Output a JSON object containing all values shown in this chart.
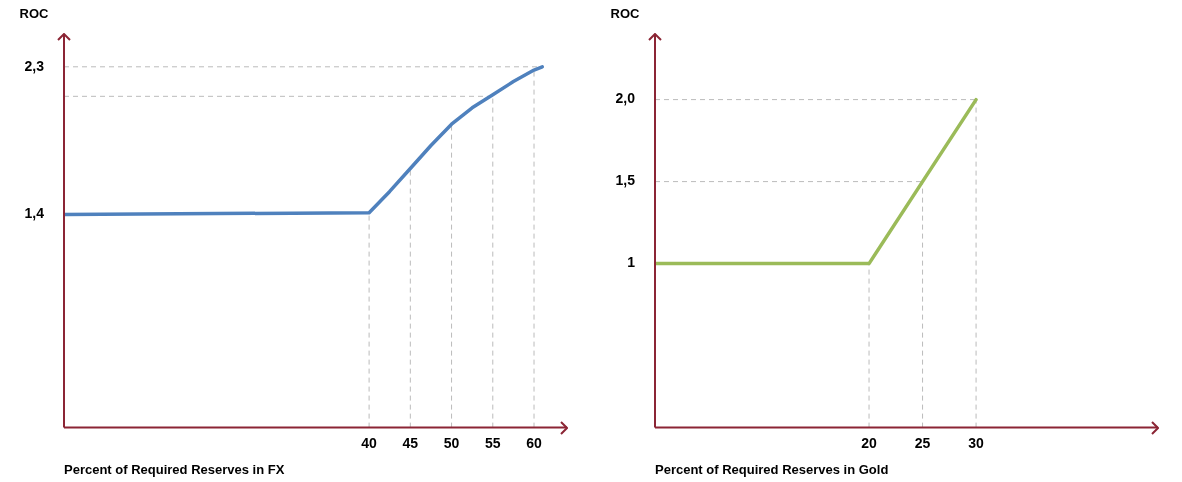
{
  "chart_data": [
    {
      "type": "line",
      "xlabel": "Percent of Required Reserves in FX",
      "ylabel": "ROC",
      "xlim": [
        3,
        64
      ],
      "ylim": [
        0.1,
        2.5
      ],
      "xticks": [
        40,
        45,
        50,
        55,
        60
      ],
      "yticks": [
        {
          "value": 1.4,
          "label": "1,4"
        },
        {
          "value": 2.3,
          "label": "2,3"
        }
      ],
      "series": [
        {
          "color": "#4f81bd",
          "x": [
            3,
            40,
            42.5,
            45,
            47.5,
            50,
            52.5,
            55,
            57.5,
            60,
            61
          ],
          "values": [
            1.4,
            1.41,
            1.54,
            1.68,
            1.82,
            1.95,
            2.05,
            2.13,
            2.21,
            2.28,
            2.3
          ]
        }
      ],
      "ref_lines": [
        {
          "axis": "x",
          "value": 40,
          "color": "#bbbbbb",
          "line_style": "dashed"
        },
        {
          "axis": "x",
          "value": 45,
          "color": "#bbbbbb",
          "line_style": "dashed"
        },
        {
          "axis": "x",
          "value": 50,
          "color": "#bbbbbb",
          "line_style": "dashed"
        },
        {
          "axis": "x",
          "value": 55,
          "color": "#bbbbbb",
          "line_style": "dashed"
        },
        {
          "axis": "x",
          "value": 60,
          "color": "#bbbbbb",
          "line_style": "dashed"
        },
        {
          "axis": "y",
          "value": 2.3,
          "color": "#bbbbbb",
          "line_style": "dashed"
        },
        {
          "axis": "y",
          "value": 2.12,
          "color": "#bbbbbb",
          "line_style": "dashed"
        }
      ],
      "grid": false,
      "legend": false,
      "marker": "none",
      "line_style": "solid"
    },
    {
      "type": "line",
      "xlabel": "Percent of Required Reserves in Gold",
      "ylabel": "ROC",
      "xlim": [
        0,
        47
      ],
      "ylim": [
        0,
        2.4
      ],
      "xticks": [
        20,
        25,
        30
      ],
      "yticks": [
        1,
        {
          "value": 1.5,
          "label": "1,5"
        },
        {
          "value": 2,
          "label": "2,0"
        }
      ],
      "series": [
        {
          "color": "#9bbb59",
          "x": [
            0,
            20,
            30
          ],
          "values": [
            1,
            1,
            2
          ]
        }
      ],
      "ref_lines": [
        {
          "axis": "x",
          "value": 20,
          "color": "#bbbbbb",
          "line_style": "dashed"
        },
        {
          "axis": "x",
          "value": 25,
          "color": "#bbbbbb",
          "line_style": "dashed"
        },
        {
          "axis": "x",
          "value": 30,
          "color": "#bbbbbb",
          "line_style": "dashed"
        },
        {
          "axis": "y",
          "value": 1.5,
          "color": "#bbbbbb",
          "line_style": "dashed"
        },
        {
          "axis": "y",
          "value": 2,
          "color": "#bbbbbb",
          "line_style": "dashed"
        }
      ],
      "grid": false,
      "legend": false,
      "marker": "none",
      "line_style": "solid"
    }
  ]
}
